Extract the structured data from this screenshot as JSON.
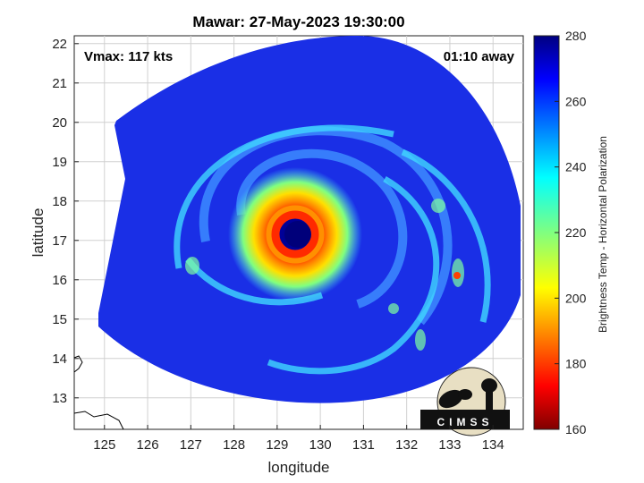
{
  "chart_data": {
    "type": "heatmap",
    "title": "Mawar: 27-May-2023 19:30:00",
    "xlabel": "longitude",
    "ylabel": "latitude",
    "xlim": [
      124.3,
      134.7
    ],
    "ylim": [
      12.2,
      22.2
    ],
    "xticks": [
      125,
      126,
      127,
      128,
      129,
      130,
      131,
      132,
      133,
      134
    ],
    "yticks": [
      13,
      14,
      15,
      16,
      17,
      18,
      19,
      20,
      21,
      22
    ],
    "colorbar": {
      "label": "Brightness Temp - Horizontal Polarization",
      "range": [
        160,
        280
      ],
      "ticks": [
        160,
        180,
        200,
        220,
        240,
        260,
        280
      ],
      "colormap": "jet"
    },
    "annotations": {
      "vmax": "Vmax: 117 kts",
      "time_offset": "01:10 away"
    },
    "storm_center": {
      "lon": 129.4,
      "lat": 17.0
    },
    "grid": true
  },
  "logo": {
    "text": "CIMSS"
  }
}
